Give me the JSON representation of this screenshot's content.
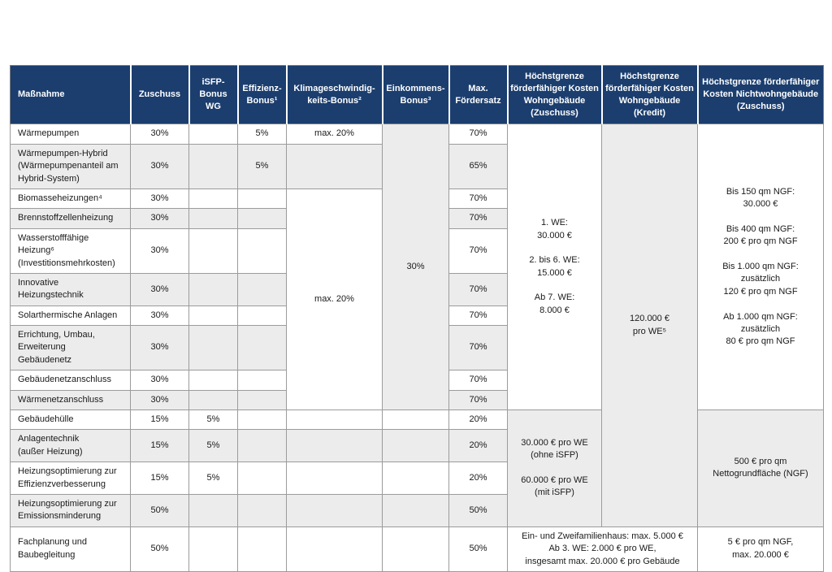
{
  "colors": {
    "header_bg": "#1b3e6f",
    "header_text": "#ffffff",
    "stripe_gray": "#ececec",
    "stripe_white": "#ffffff",
    "cell_border": "#9b9b9b",
    "body_text": "#1a1a1a"
  },
  "chart_data": {
    "type": "table",
    "headers": [
      "Maßnahme",
      "Zuschuss",
      "iSFP-\nBonus\nWG",
      "Effizienz-\nBonus¹",
      "Klimageschwindig-\nkeits-Bonus²",
      "Einkommens-\nBonus³",
      "Max.\nFördersatz",
      "Höchstgrenze\nförderfähiger Kosten\nWohngebäude\n(Zuschuss)",
      "Höchstgrenze\nförderfähiger Kosten\nWohngebäude\n(Kredit)",
      "Höchstgrenze förderfähiger\nKosten Nichtwohngebäude\n(Zuschuss)"
    ],
    "rows": [
      {
        "stripe": "white",
        "cells": [
          {
            "text": "Wärmepumpen",
            "align": "left",
            "name": "cell-massnahme"
          },
          {
            "text": "30%"
          },
          {
            "text": ""
          },
          {
            "text": "5%"
          },
          {
            "text": "max. 20%"
          },
          {
            "text": "30%",
            "rowspan": 10,
            "bg": "gray",
            "name": "cell-einkommens-bonus-merged"
          },
          {
            "text": "70%"
          },
          {
            "text": "1. WE:\n30.000 €\n\n2. bis 6. WE:\n15.000 €\n\nAb 7. WE:\n8.000 €",
            "rowspan": 10,
            "bg": "white",
            "name": "cell-hoechstgrenze-wg-zuschuss-heizung"
          },
          {
            "text": "120.000 €\npro WE⁵",
            "rowspan": 14,
            "bg": "gray",
            "name": "cell-hoechstgrenze-wg-kredit"
          },
          {
            "text": "Bis 150 qm NGF:\n30.000 €\n\nBis 400 qm NGF:\n200 € pro qm NGF\n\nBis 1.000 qm NGF:\nzusätzlich\n120 € pro qm NGF\n\nAb 1.000 qm NGF:\nzusätzlich\n80 € pro qm NGF",
            "rowspan": 10,
            "bg": "white",
            "name": "cell-hoechstgrenze-nwg-heizung"
          }
        ]
      },
      {
        "stripe": "gray",
        "cells": [
          {
            "text": "Wärmepumpen-Hybrid\n(Wärmepumpenanteil am\nHybrid-System)",
            "align": "left",
            "name": "cell-massnahme"
          },
          {
            "text": "30%"
          },
          {
            "text": ""
          },
          {
            "text": "5%"
          },
          {
            "text": ""
          },
          {
            "text": "65%"
          }
        ]
      },
      {
        "stripe": "white",
        "cells": [
          {
            "text": "Biomasseheizungen⁴",
            "align": "left",
            "name": "cell-massnahme"
          },
          {
            "text": "30%"
          },
          {
            "text": ""
          },
          {
            "text": ""
          },
          {
            "text": "max. 20%",
            "rowspan": 8,
            "bg": "white",
            "name": "cell-klimageschwindigkeits-bonus-merged"
          },
          {
            "text": "70%"
          }
        ]
      },
      {
        "stripe": "gray",
        "cells": [
          {
            "text": "Brennstoffzellenheizung",
            "align": "left",
            "name": "cell-massnahme"
          },
          {
            "text": "30%"
          },
          {
            "text": ""
          },
          {
            "text": ""
          },
          {
            "text": "70%"
          }
        ]
      },
      {
        "stripe": "white",
        "cells": [
          {
            "text": "Wasserstofffähige Heizung⁶\n(Investitionsmehrkosten)",
            "align": "left",
            "name": "cell-massnahme"
          },
          {
            "text": "30%"
          },
          {
            "text": ""
          },
          {
            "text": ""
          },
          {
            "text": "70%"
          }
        ]
      },
      {
        "stripe": "gray",
        "cells": [
          {
            "text": "Innovative Heizungstechnik",
            "align": "left",
            "name": "cell-massnahme"
          },
          {
            "text": "30%"
          },
          {
            "text": ""
          },
          {
            "text": ""
          },
          {
            "text": "70%"
          }
        ]
      },
      {
        "stripe": "white",
        "cells": [
          {
            "text": "Solarthermische Anlagen",
            "align": "left",
            "name": "cell-massnahme"
          },
          {
            "text": "30%"
          },
          {
            "text": ""
          },
          {
            "text": ""
          },
          {
            "text": "70%"
          }
        ]
      },
      {
        "stripe": "gray",
        "cells": [
          {
            "text": "Errichtung, Umbau,\nErweiterung\nGebäudenetz",
            "align": "left",
            "name": "cell-massnahme"
          },
          {
            "text": "30%"
          },
          {
            "text": ""
          },
          {
            "text": ""
          },
          {
            "text": "70%"
          }
        ]
      },
      {
        "stripe": "white",
        "cells": [
          {
            "text": "Gebäudenetzanschluss",
            "align": "left",
            "name": "cell-massnahme"
          },
          {
            "text": "30%"
          },
          {
            "text": ""
          },
          {
            "text": ""
          },
          {
            "text": "70%"
          }
        ]
      },
      {
        "stripe": "gray",
        "cells": [
          {
            "text": "Wärmenetzanschluss",
            "align": "left",
            "name": "cell-massnahme"
          },
          {
            "text": "30%"
          },
          {
            "text": ""
          },
          {
            "text": ""
          },
          {
            "text": "70%"
          }
        ]
      },
      {
        "stripe": "white",
        "cells": [
          {
            "text": "Gebäudehülle",
            "align": "left",
            "name": "cell-massnahme"
          },
          {
            "text": "15%"
          },
          {
            "text": "5%"
          },
          {
            "text": ""
          },
          {
            "text": ""
          },
          {
            "text": ""
          },
          {
            "text": "20%"
          },
          {
            "text": "30.000 € pro WE\n(ohne iSFP)\n\n60.000 € pro WE\n(mit iSFP)",
            "rowspan": 4,
            "bg": "gray",
            "name": "cell-hoechstgrenze-wg-zuschuss-effizienz"
          },
          {
            "text": "500 € pro qm\nNettogrundfläche (NGF)",
            "rowspan": 4,
            "bg": "gray",
            "name": "cell-hoechstgrenze-nwg-effizienz"
          }
        ]
      },
      {
        "stripe": "gray",
        "cells": [
          {
            "text": "Anlagentechnik\n(außer Heizung)",
            "align": "left",
            "name": "cell-massnahme"
          },
          {
            "text": "15%"
          },
          {
            "text": "5%"
          },
          {
            "text": ""
          },
          {
            "text": ""
          },
          {
            "text": ""
          },
          {
            "text": "20%"
          }
        ]
      },
      {
        "stripe": "white",
        "cells": [
          {
            "text": "Heizungsoptimierung zur\nEffizienzverbesserung",
            "align": "left",
            "name": "cell-massnahme"
          },
          {
            "text": "15%"
          },
          {
            "text": "5%"
          },
          {
            "text": ""
          },
          {
            "text": ""
          },
          {
            "text": ""
          },
          {
            "text": "20%"
          }
        ]
      },
      {
        "stripe": "gray",
        "cells": [
          {
            "text": "Heizungsoptimierung zur\nEmissionsminderung",
            "align": "left",
            "name": "cell-massnahme"
          },
          {
            "text": "50%"
          },
          {
            "text": ""
          },
          {
            "text": ""
          },
          {
            "text": ""
          },
          {
            "text": ""
          },
          {
            "text": "50%"
          }
        ]
      },
      {
        "stripe": "white",
        "cells": [
          {
            "text": "Fachplanung und\nBaubegleitung",
            "align": "left",
            "name": "cell-massnahme"
          },
          {
            "text": "50%"
          },
          {
            "text": ""
          },
          {
            "text": ""
          },
          {
            "text": ""
          },
          {
            "text": ""
          },
          {
            "text": "50%"
          },
          {
            "text": "Ein- und Zweifamilienhaus: max. 5.000 €\nAb 3. WE: 2.000 € pro WE,\ninsgesamt max. 20.000 € pro Gebäude",
            "colspan": 2,
            "bg": "white",
            "name": "cell-hoechstgrenze-wg-fachplanung"
          },
          {
            "text": "5 € pro qm NGF,\nmax. 20.000 €",
            "bg": "white",
            "name": "cell-hoechstgrenze-nwg-fachplanung"
          }
        ]
      }
    ]
  }
}
